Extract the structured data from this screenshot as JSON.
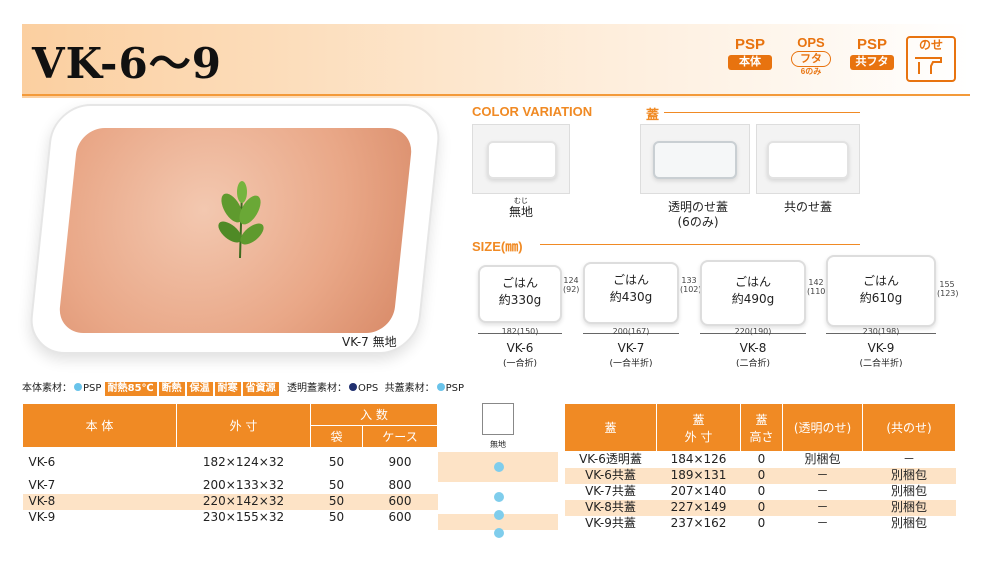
{
  "header": {
    "title": "VK-6～9"
  },
  "badges": [
    {
      "top": "PSP",
      "bottom": "本体"
    },
    {
      "top": "OPS",
      "bottom": "フタ",
      "small": "6のみ"
    },
    {
      "top": "PSP",
      "bottom": "共フタ"
    },
    {
      "top": "のせ"
    }
  ],
  "photo": {
    "caption": "VK-7 無地"
  },
  "color_variation": {
    "title": "COLOR VARIATION",
    "ruby": "むじ",
    "label": "無地"
  },
  "lid": {
    "title": "蓋",
    "items": [
      {
        "label": "透明のせ蓋",
        "sub": "(6のみ)"
      },
      {
        "label": "共のせ蓋"
      }
    ]
  },
  "size": {
    "title": "SIZE(㎜)",
    "items": [
      {
        "rice": "ごはん",
        "amount": "約330g",
        "w": "182(150)",
        "h1": "124",
        "h2": "(92)",
        "model": "VK-6",
        "fold": "(一合折)"
      },
      {
        "rice": "ごはん",
        "amount": "約430g",
        "w": "200(167)",
        "h1": "133",
        "h2": "(102)",
        "model": "VK-7",
        "fold": "(一合半折)"
      },
      {
        "rice": "ごはん",
        "amount": "約490g",
        "w": "220(190)",
        "h1": "142",
        "h2": "(110)",
        "model": "VK-8",
        "fold": "(二合折)"
      },
      {
        "rice": "ごはん",
        "amount": "約610g",
        "w": "230(198)",
        "h1": "155",
        "h2": "(123)",
        "model": "VK-9",
        "fold": "(二合半折)"
      }
    ]
  },
  "materials": {
    "body_label": "本体素材：",
    "body_mat": "PSP",
    "tags": [
      "耐熱85℃",
      "断熱",
      "保温",
      "耐寒",
      "省資源"
    ],
    "lid_label": "透明蓋素材：",
    "lid_mat": "OPS",
    "shared_label": "共蓋素材：",
    "shared_mat": "PSP"
  },
  "table_left": {
    "h_body": "本 体",
    "h_dim": "外 寸",
    "h_qty": "入 数",
    "h_bag": "袋",
    "h_case": "ケース",
    "rows": [
      {
        "model": "VK-6",
        "dim": "182×124×32",
        "bag": "50",
        "case": "900"
      },
      {
        "model": "VK-7",
        "dim": "200×133×32",
        "bag": "50",
        "case": "800"
      },
      {
        "model": "VK-8",
        "dim": "220×142×32",
        "bag": "50",
        "case": "600"
      },
      {
        "model": "VK-9",
        "dim": "230×155×32",
        "bag": "50",
        "case": "600"
      }
    ]
  },
  "swatch": {
    "label": "無地"
  },
  "table_right": {
    "h_lid": "蓋",
    "h_dim1": "蓋",
    "h_dim2": "外 寸",
    "h_ht1": "蓋",
    "h_ht2": "高さ",
    "h_clear": "(透明のせ)",
    "h_shared": "(共のせ)",
    "rows": [
      {
        "lid": "VK-6透明蓋",
        "dim": "184×126",
        "ht": "0",
        "clear": "別梱包",
        "shared": "－"
      },
      {
        "lid": "VK-6共蓋",
        "dim": "189×131",
        "ht": "0",
        "clear": "－",
        "shared": "別梱包"
      },
      {
        "lid": "VK-7共蓋",
        "dim": "207×140",
        "ht": "0",
        "clear": "－",
        "shared": "別梱包"
      },
      {
        "lid": "VK-8共蓋",
        "dim": "227×149",
        "ht": "0",
        "clear": "－",
        "shared": "別梱包"
      },
      {
        "lid": "VK-9共蓋",
        "dim": "237×162",
        "ht": "0",
        "clear": "－",
        "shared": "別梱包"
      }
    ]
  }
}
